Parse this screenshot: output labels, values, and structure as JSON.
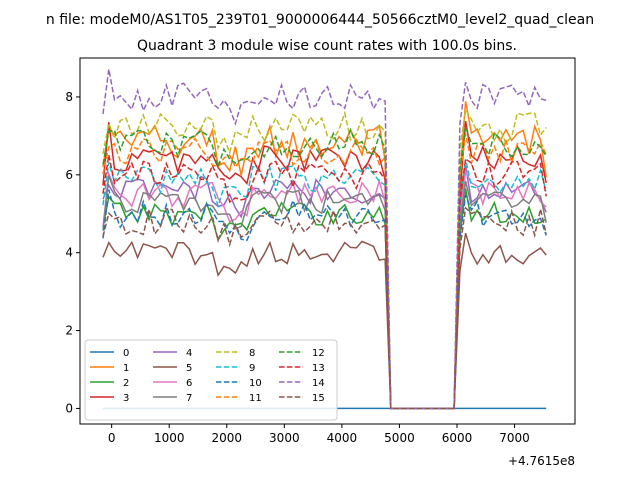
{
  "figure": {
    "suptitle": "n file: modeM0/AS1T05_239T01_9000006444_50566cztM0_level2_quad_clean",
    "title": "Quadrant 3 module wise count rates with 100.0s bins.",
    "offset_label": "+4.7615e8"
  },
  "chart_data": {
    "type": "line",
    "title": "Quadrant 3 module wise count rates with 100.0s bins.",
    "xlabel": "",
    "ylabel": "",
    "x_offset": 476150000,
    "xlim": [
      -550,
      8050
    ],
    "ylim": [
      -0.4,
      9.0
    ],
    "x_ticks": [
      0,
      1000,
      2000,
      3000,
      4000,
      5000,
      6000,
      7000
    ],
    "y_ticks": [
      0,
      2,
      4,
      6,
      8
    ],
    "x_tick_labels": [
      "0",
      "1000",
      "2000",
      "3000",
      "4000",
      "5000",
      "6000",
      "7000"
    ],
    "y_tick_labels": [
      "0",
      "2",
      "4",
      "6",
      "8"
    ],
    "grid": false,
    "legend_position": "lower-left",
    "legend_columns": 4,
    "segments": [
      {
        "start": -150,
        "end": 4750,
        "step": 100
      },
      {
        "start": 6050,
        "end": 7550,
        "step": 100
      }
    ],
    "gap": {
      "x": [
        4850,
        5950
      ],
      "value": 0
    },
    "series": [
      {
        "name": "0",
        "color": "#1f77b4",
        "style": "solid",
        "level": 0.0,
        "spread": 0.0,
        "amp": 0.0
      },
      {
        "name": "1",
        "color": "#ff7f0e",
        "style": "solid",
        "level": 6.8,
        "spread": 0.5,
        "amp": 0.8
      },
      {
        "name": "2",
        "color": "#2ca02c",
        "style": "solid",
        "level": 5.0,
        "spread": 0.3,
        "amp": 0.5
      },
      {
        "name": "3",
        "color": "#d62728",
        "style": "solid",
        "level": 6.4,
        "spread": 0.35,
        "amp": 0.9
      },
      {
        "name": "4",
        "color": "#9467bd",
        "style": "solid",
        "level": 5.6,
        "spread": 0.35,
        "amp": 0.5
      },
      {
        "name": "5",
        "color": "#8c564b",
        "style": "solid",
        "level": 4.0,
        "spread": 0.3,
        "amp": 0.4
      },
      {
        "name": "6",
        "color": "#e377c2",
        "style": "solid",
        "level": 5.5,
        "spread": 0.35,
        "amp": 0.5
      },
      {
        "name": "7",
        "color": "#7f7f7f",
        "style": "solid",
        "level": 5.3,
        "spread": 0.3,
        "amp": 0.5
      },
      {
        "name": "8",
        "color": "#bcbd22",
        "style": "dashed",
        "level": 7.2,
        "spread": 0.4,
        "amp": 0.4
      },
      {
        "name": "9",
        "color": "#17becf",
        "style": "dashed",
        "level": 5.9,
        "spread": 0.35,
        "amp": 0.5
      },
      {
        "name": "10",
        "color": "#1f77b4",
        "style": "dashed",
        "level": 5.0,
        "spread": 0.35,
        "amp": 0.5
      },
      {
        "name": "11",
        "color": "#ff7f0e",
        "style": "dashed",
        "level": 6.6,
        "spread": 0.35,
        "amp": 0.5
      },
      {
        "name": "12",
        "color": "#2ca02c",
        "style": "dashed",
        "level": 6.8,
        "spread": 0.35,
        "amp": 0.5
      },
      {
        "name": "13",
        "color": "#d62728",
        "style": "dashed",
        "level": 6.0,
        "spread": 0.35,
        "amp": 0.5
      },
      {
        "name": "14",
        "color": "#9467bd",
        "style": "dashed",
        "level": 8.0,
        "spread": 0.35,
        "amp": 0.5
      },
      {
        "name": "15",
        "color": "#8c564b",
        "style": "dashed",
        "level": 4.8,
        "spread": 0.35,
        "amp": 0.5
      }
    ]
  }
}
